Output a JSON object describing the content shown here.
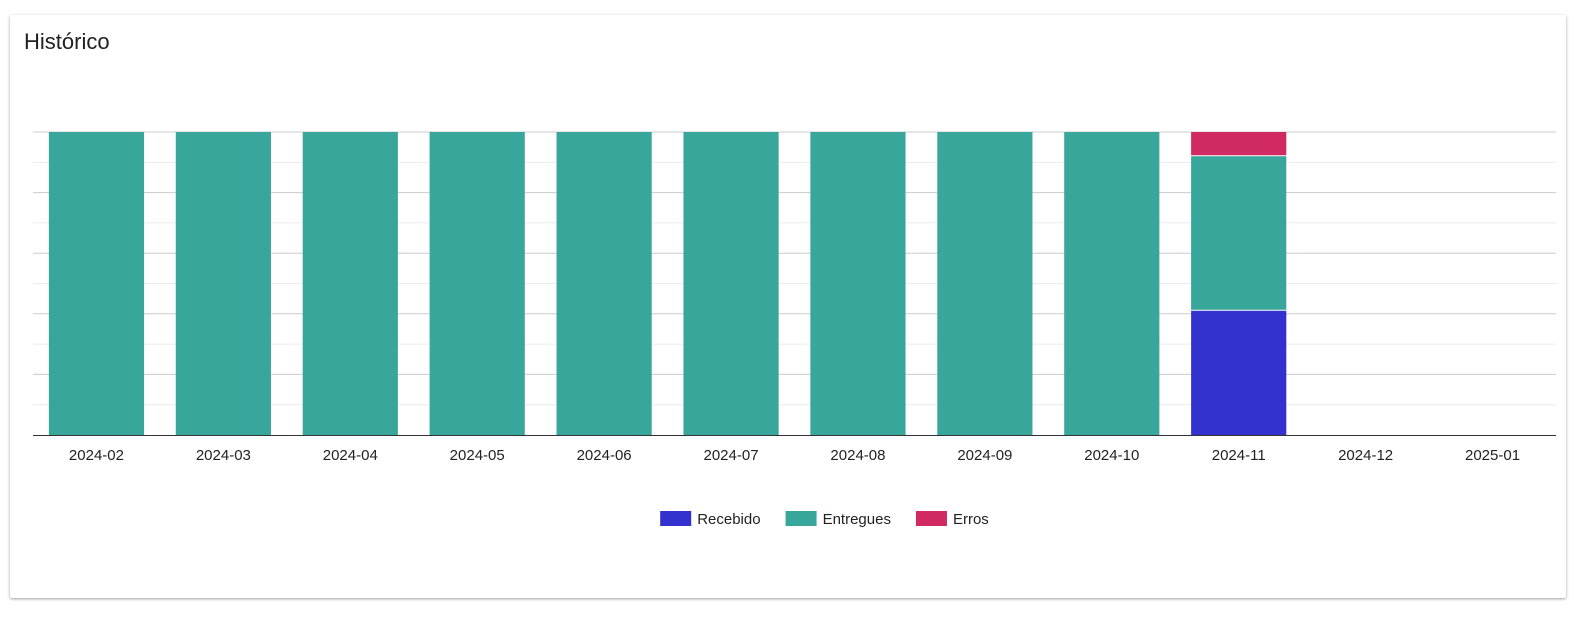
{
  "card": {
    "title": "Histórico"
  },
  "chart_data": {
    "type": "bar",
    "stacked": true,
    "normalized": true,
    "categories": [
      "2024-02",
      "2024-03",
      "2024-04",
      "2024-05",
      "2024-06",
      "2024-07",
      "2024-08",
      "2024-09",
      "2024-10",
      "2024-11",
      "2024-12",
      "2025-01"
    ],
    "series": [
      {
        "name": "Recebido",
        "color": "#3432cf",
        "values": [
          0,
          0,
          0,
          0,
          0,
          0,
          0,
          0,
          0,
          0.41,
          0,
          0
        ]
      },
      {
        "name": "Entregues",
        "color": "#38a69b",
        "values": [
          1,
          1,
          1,
          1,
          1,
          1,
          1,
          1,
          1,
          0.51,
          0,
          0
        ]
      },
      {
        "name": "Erros",
        "color": "#d12a63",
        "values": [
          0,
          0,
          0,
          0,
          0,
          0,
          0,
          0,
          0,
          0.08,
          0,
          0
        ]
      }
    ],
    "ylim": [
      0,
      1
    ],
    "grid": true,
    "y_tick_labels_visible": false,
    "legend_position": "bottom"
  }
}
